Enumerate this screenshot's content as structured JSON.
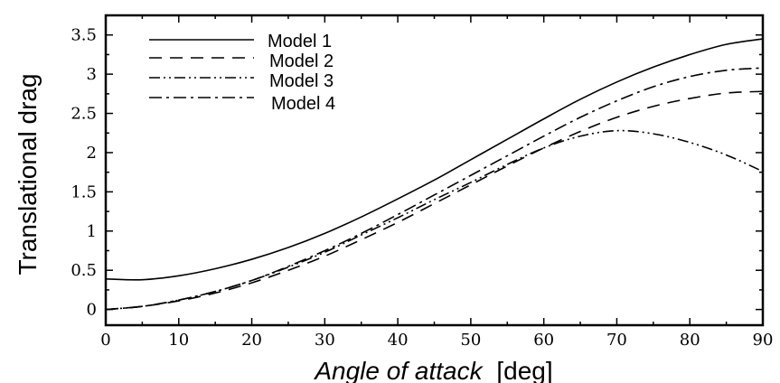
{
  "chart_data": {
    "type": "line",
    "xlabel_italic": "Angle of attack",
    "xlabel_unit": "[deg]",
    "ylabel": "Translational drag",
    "xlim": [
      0,
      90
    ],
    "ylim": [
      -0.2,
      3.75
    ],
    "x_ticks": [
      0,
      10,
      20,
      30,
      40,
      50,
      60,
      70,
      80,
      90
    ],
    "y_ticks": [
      0,
      0.5,
      1,
      1.5,
      2,
      2.5,
      3,
      3.5
    ],
    "grid": false,
    "legend_position": "top-left",
    "x": [
      0,
      5,
      10,
      15,
      20,
      25,
      30,
      35,
      40,
      45,
      50,
      55,
      60,
      65,
      70,
      75,
      80,
      85,
      90
    ],
    "series": [
      {
        "name": "Model 1",
        "dash": "solid",
        "values": [
          0.39,
          0.38,
          0.43,
          0.52,
          0.64,
          0.79,
          0.97,
          1.18,
          1.41,
          1.65,
          1.91,
          2.17,
          2.43,
          2.68,
          2.9,
          3.09,
          3.25,
          3.38,
          3.45
        ]
      },
      {
        "name": "Model 2",
        "dash": "dashed",
        "values": [
          0.0,
          0.04,
          0.11,
          0.21,
          0.34,
          0.5,
          0.68,
          0.89,
          1.11,
          1.35,
          1.59,
          1.83,
          2.06,
          2.27,
          2.45,
          2.59,
          2.69,
          2.76,
          2.78
        ]
      },
      {
        "name": "Model 3",
        "dash": "dash-dot-dot",
        "values": [
          0.0,
          0.04,
          0.12,
          0.23,
          0.37,
          0.54,
          0.73,
          0.95,
          1.17,
          1.4,
          1.62,
          1.85,
          2.06,
          2.21,
          2.28,
          2.24,
          2.13,
          1.97,
          1.76
        ]
      },
      {
        "name": "Model 4",
        "dash": "dash-dot",
        "values": [
          0.0,
          0.04,
          0.12,
          0.23,
          0.37,
          0.55,
          0.75,
          0.97,
          1.21,
          1.46,
          1.71,
          1.96,
          2.21,
          2.45,
          2.66,
          2.84,
          2.97,
          3.05,
          3.08
        ]
      }
    ]
  }
}
